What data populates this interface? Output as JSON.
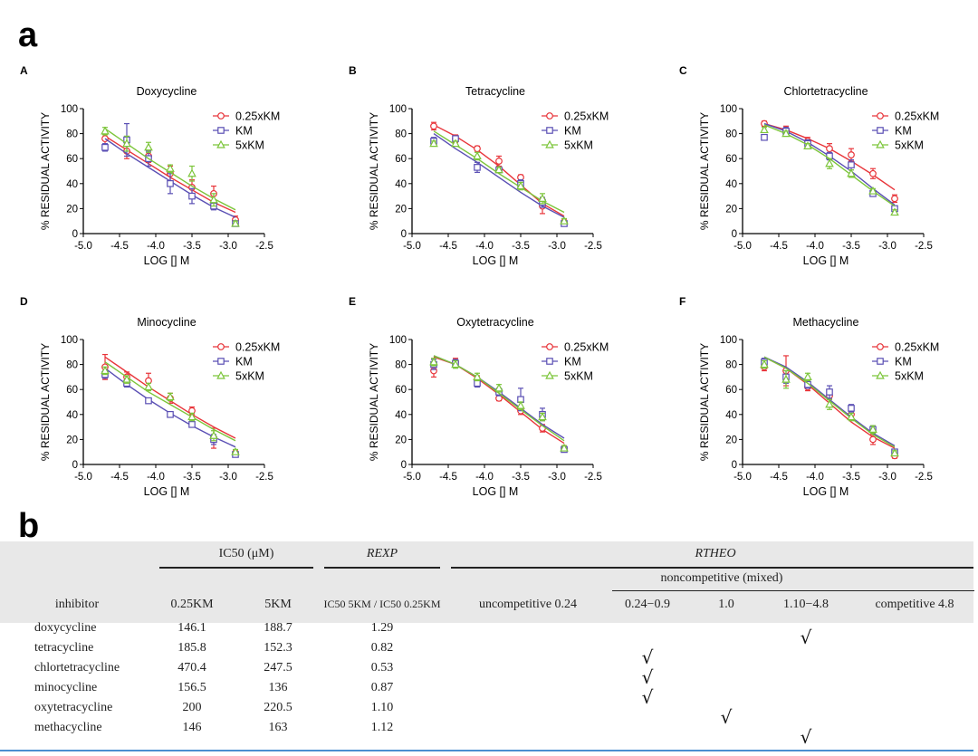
{
  "figure": {
    "label_a": "a",
    "label_b": "b"
  },
  "chart_data": [
    {
      "panel": "A",
      "type": "line",
      "title": "Doxycycline",
      "xlabel": "LOG [] M",
      "ylabel": "% RESIDUAL ACTIVITY",
      "xlim": [
        -5.0,
        -2.5
      ],
      "ylim": [
        0,
        100
      ],
      "xticks": [
        "-5.0",
        "-4.5",
        "-4.0",
        "-3.5",
        "-3.0",
        "-2.5"
      ],
      "yticks": [
        "0",
        "20",
        "40",
        "60",
        "80",
        "100"
      ],
      "x": [
        -4.7,
        -4.4,
        -4.1,
        -3.8,
        -3.5,
        -3.2,
        -2.9
      ],
      "series": [
        {
          "name": "0.25xKM",
          "color": "#e8353a",
          "marker": "circle",
          "values": [
            76,
            66,
            62,
            48,
            37,
            32,
            11
          ],
          "errors": [
            5,
            6,
            5,
            6,
            6,
            6,
            3
          ],
          "fit": [
            78,
            67,
            56,
            45,
            35,
            25,
            17
          ]
        },
        {
          "name": "KM",
          "color": "#5a4fb4",
          "marker": "square",
          "values": [
            69,
            75,
            60,
            40,
            30,
            22,
            8
          ],
          "errors": [
            3,
            13,
            6,
            8,
            6,
            3,
            2
          ],
          "fit": [
            76,
            64,
            53,
            42,
            31,
            21,
            13
          ]
        },
        {
          "name": "5xKM",
          "color": "#7cc53a",
          "marker": "triangle",
          "values": [
            82,
            72,
            69,
            52,
            48,
            27,
            8
          ],
          "errors": [
            3,
            6,
            4,
            3,
            6,
            5,
            2
          ],
          "fit": [
            84,
            72,
            60,
            49,
            38,
            28,
            19
          ]
        }
      ]
    },
    {
      "panel": "B",
      "type": "line",
      "title": "Tetracycline",
      "xlabel": "LOG [] M",
      "ylabel": "% RESIDUAL ACTIVITY",
      "xlim": [
        -5.0,
        -2.5
      ],
      "ylim": [
        0,
        100
      ],
      "xticks": [
        "-5.0",
        "-4.5",
        "-4.0",
        "-3.5",
        "-3.0",
        "-2.5"
      ],
      "yticks": [
        "0",
        "20",
        "40",
        "60",
        "80",
        "100"
      ],
      "x": [
        -4.7,
        -4.4,
        -4.1,
        -3.8,
        -3.5,
        -3.2,
        -2.9
      ],
      "series": [
        {
          "name": "0.25xKM",
          "color": "#e8353a",
          "marker": "circle",
          "values": [
            86,
            76,
            68,
            58,
            45,
            22,
            9
          ],
          "errors": [
            3,
            3,
            2,
            4,
            2,
            6,
            2
          ],
          "fit": [
            87,
            78,
            67,
            54,
            39,
            24,
            14
          ]
        },
        {
          "name": "KM",
          "color": "#5a4fb4",
          "marker": "square",
          "values": [
            74,
            76,
            53,
            51,
            40,
            25,
            8
          ],
          "errors": [
            3,
            2,
            4,
            2,
            3,
            4,
            2
          ],
          "fit": [
            80,
            68,
            57,
            45,
            33,
            22,
            13
          ]
        },
        {
          "name": "5xKM",
          "color": "#7cc53a",
          "marker": "triangle",
          "values": [
            72,
            72,
            62,
            51,
            38,
            28,
            10
          ],
          "errors": [
            2,
            2,
            3,
            2,
            3,
            4,
            2
          ],
          "fit": [
            82,
            71,
            60,
            48,
            37,
            26,
            17
          ]
        }
      ]
    },
    {
      "panel": "C",
      "type": "line",
      "title": "Chlortetracycline",
      "xlabel": "LOG [] M",
      "ylabel": "% RESIDUAL ACTIVITY",
      "xlim": [
        -5.0,
        -2.5
      ],
      "ylim": [
        0,
        100
      ],
      "xticks": [
        "-5.0",
        "-4.5",
        "-4.0",
        "-3.5",
        "-3.0",
        "-2.5"
      ],
      "yticks": [
        "0",
        "20",
        "40",
        "60",
        "80",
        "100"
      ],
      "x": [
        -4.7,
        -4.4,
        -4.1,
        -3.8,
        -3.5,
        -3.2,
        -2.9
      ],
      "series": [
        {
          "name": "0.25xKM",
          "color": "#e8353a",
          "marker": "circle",
          "values": [
            88,
            83,
            74,
            68,
            63,
            48,
            28
          ],
          "errors": [
            2,
            3,
            3,
            4,
            5,
            4,
            3
          ],
          "fit": [
            88,
            83,
            76,
            68,
            58,
            47,
            35
          ]
        },
        {
          "name": "KM",
          "color": "#5a4fb4",
          "marker": "square",
          "values": [
            77,
            82,
            72,
            62,
            55,
            32,
            20
          ],
          "errors": [
            2,
            3,
            3,
            3,
            4,
            2,
            2
          ],
          "fit": [
            88,
            82,
            73,
            62,
            50,
            36,
            23
          ]
        },
        {
          "name": "5xKM",
          "color": "#7cc53a",
          "marker": "triangle",
          "values": [
            83,
            80,
            70,
            56,
            48,
            34,
            17
          ],
          "errors": [
            2,
            2,
            2,
            4,
            3,
            2,
            2
          ],
          "fit": [
            87,
            80,
            71,
            60,
            47,
            34,
            22
          ]
        }
      ]
    },
    {
      "panel": "D",
      "type": "line",
      "title": "Minocycline",
      "xlabel": "LOG [] M",
      "ylabel": "% RESIDUAL ACTIVITY",
      "xlim": [
        -5.0,
        -2.5
      ],
      "ylim": [
        0,
        100
      ],
      "xticks": [
        "-5.0",
        "-4.5",
        "-4.0",
        "-3.5",
        "-3.0",
        "-2.5"
      ],
      "yticks": [
        "0",
        "20",
        "40",
        "60",
        "80",
        "100"
      ],
      "x": [
        -4.7,
        -4.4,
        -4.1,
        -3.8,
        -3.5,
        -3.2,
        -2.9
      ],
      "series": [
        {
          "name": "0.25xKM",
          "color": "#e8353a",
          "marker": "circle",
          "values": [
            78,
            70,
            67,
            53,
            43,
            21,
            9
          ],
          "errors": [
            10,
            4,
            6,
            4,
            3,
            8,
            2
          ],
          "fit": [
            86,
            74,
            62,
            51,
            40,
            30,
            21
          ]
        },
        {
          "name": "KM",
          "color": "#5a4fb4",
          "marker": "square",
          "values": [
            72,
            65,
            51,
            40,
            32,
            20,
            8
          ],
          "errors": [
            3,
            3,
            2,
            2,
            2,
            4,
            2
          ],
          "fit": [
            77,
            64,
            52,
            41,
            31,
            22,
            14
          ]
        },
        {
          "name": "5xKM",
          "color": "#7cc53a",
          "marker": "triangle",
          "values": [
            75,
            68,
            62,
            54,
            38,
            23,
            10
          ],
          "errors": [
            3,
            3,
            3,
            3,
            3,
            4,
            2
          ],
          "fit": [
            82,
            70,
            58,
            48,
            38,
            28,
            19
          ]
        }
      ]
    },
    {
      "panel": "E",
      "type": "line",
      "title": "Oxytetracycline",
      "xlabel": "LOG [] M",
      "ylabel": "% RESIDUAL ACTIVITY",
      "xlim": [
        -5.0,
        -2.5
      ],
      "ylim": [
        0,
        100
      ],
      "xticks": [
        "-5.0",
        "-4.5",
        "-4.0",
        "-3.5",
        "-3.0",
        "-2.5"
      ],
      "yticks": [
        "0",
        "20",
        "40",
        "60",
        "80",
        "100"
      ],
      "x": [
        -4.7,
        -4.4,
        -4.1,
        -3.8,
        -3.5,
        -3.2,
        -2.9
      ],
      "series": [
        {
          "name": "0.25xKM",
          "color": "#e8353a",
          "marker": "circle",
          "values": [
            75,
            82,
            68,
            53,
            43,
            29,
            13
          ],
          "errors": [
            5,
            3,
            3,
            2,
            3,
            3,
            2
          ],
          "fit": [
            86,
            80,
            69,
            56,
            42,
            28,
            17
          ]
        },
        {
          "name": "KM",
          "color": "#5a4fb4",
          "marker": "square",
          "values": [
            80,
            81,
            65,
            58,
            52,
            40,
            12
          ],
          "errors": [
            4,
            3,
            3,
            3,
            9,
            5,
            2
          ],
          "fit": [
            87,
            80,
            70,
            58,
            45,
            32,
            21
          ]
        },
        {
          "name": "5xKM",
          "color": "#7cc53a",
          "marker": "triangle",
          "values": [
            82,
            80,
            70,
            61,
            47,
            38,
            13
          ],
          "errors": [
            3,
            3,
            3,
            3,
            3,
            3,
            2
          ],
          "fit": [
            87,
            80,
            70,
            57,
            44,
            31,
            19
          ]
        }
      ]
    },
    {
      "panel": "F",
      "type": "line",
      "title": "Methacycline",
      "xlabel": "LOG [] M",
      "ylabel": "% RESIDUAL ACTIVITY",
      "xlim": [
        -5.0,
        -2.5
      ],
      "ylim": [
        0,
        100
      ],
      "xticks": [
        "-5.0",
        "-4.5",
        "-4.0",
        "-3.5",
        "-3.0",
        "-2.5"
      ],
      "yticks": [
        "0",
        "20",
        "40",
        "60",
        "80",
        "100"
      ],
      "x": [
        -4.7,
        -4.4,
        -4.1,
        -3.8,
        -3.5,
        -3.2,
        -2.9
      ],
      "series": [
        {
          "name": "0.25xKM",
          "color": "#e8353a",
          "marker": "circle",
          "values": [
            78,
            75,
            62,
            55,
            40,
            20,
            7
          ],
          "errors": [
            3,
            12,
            3,
            3,
            3,
            4,
            2
          ],
          "fit": [
            86,
            77,
            64,
            49,
            34,
            22,
            13
          ]
        },
        {
          "name": "KM",
          "color": "#5a4fb4",
          "marker": "square",
          "values": [
            82,
            70,
            64,
            58,
            45,
            28,
            10
          ],
          "errors": [
            3,
            5,
            3,
            5,
            3,
            3,
            2
          ],
          "fit": [
            86,
            78,
            66,
            52,
            38,
            25,
            15
          ]
        },
        {
          "name": "5xKM",
          "color": "#7cc53a",
          "marker": "triangle",
          "values": [
            80,
            68,
            70,
            48,
            38,
            28,
            9
          ],
          "errors": [
            3,
            7,
            3,
            4,
            3,
            3,
            2
          ],
          "fit": [
            86,
            77,
            65,
            51,
            37,
            24,
            14
          ]
        }
      ]
    }
  ],
  "table": {
    "group_headers": {
      "ic50": "IC50 (μM)",
      "rexp": "REXP",
      "rtheo": "RTHEO",
      "mixed": "noncompetitive (mixed)"
    },
    "columns": [
      "inhibitor",
      "0.25KM",
      "5KM",
      "IC50 5KM / IC50 0.25KM",
      "uncompetitive 0.24",
      "0.24−0.9",
      "1.0",
      "1.10−4.8",
      "competitive 4.8"
    ],
    "rows": [
      {
        "inhibitor": "doxycycline",
        "ic_low": "146.1",
        "ic_high": "188.7",
        "rexp": "1.29",
        "check": "√",
        "col": 3
      },
      {
        "inhibitor": "tetracycline",
        "ic_low": "185.8",
        "ic_high": "152.3",
        "rexp": "0.82",
        "check": "√",
        "col": 1
      },
      {
        "inhibitor": "chlortetracycline",
        "ic_low": "470.4",
        "ic_high": "247.5",
        "rexp": "0.53",
        "check": "√",
        "col": 1
      },
      {
        "inhibitor": "minocycline",
        "ic_low": "156.5",
        "ic_high": "136",
        "rexp": "0.87",
        "check": "√",
        "col": 1
      },
      {
        "inhibitor": "oxytetracycline",
        "ic_low": "200",
        "ic_high": "220.5",
        "rexp": "1.10",
        "check": "√",
        "col": 2
      },
      {
        "inhibitor": "methacycline",
        "ic_low": "146",
        "ic_high": "163",
        "rexp": "1.12",
        "check": "√",
        "col": 3
      }
    ]
  }
}
